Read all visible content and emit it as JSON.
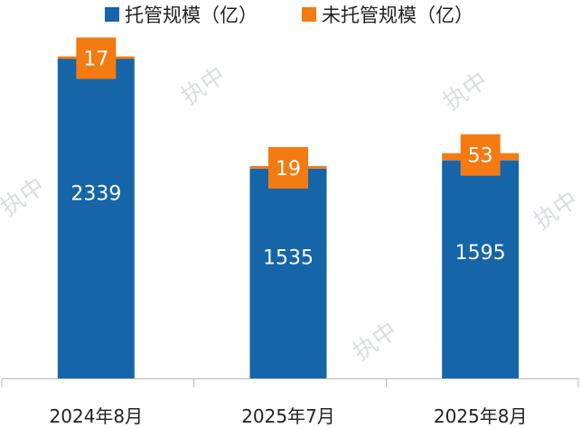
{
  "chart_data": {
    "type": "bar",
    "stacked": true,
    "categories": [
      "2024年8月",
      "2025年7月",
      "2025年8月"
    ],
    "series": [
      {
        "name": "托管规模（亿）",
        "color": "#1565a8",
        "values": [
          2339,
          1535,
          1595
        ]
      },
      {
        "name": "未托管规模（亿）",
        "color": "#f47a12",
        "values": [
          17,
          19,
          53
        ]
      }
    ],
    "ylim": [
      0,
      2650
    ],
    "grid": false,
    "legend": "top",
    "data_labels": true
  },
  "watermark": "执中"
}
